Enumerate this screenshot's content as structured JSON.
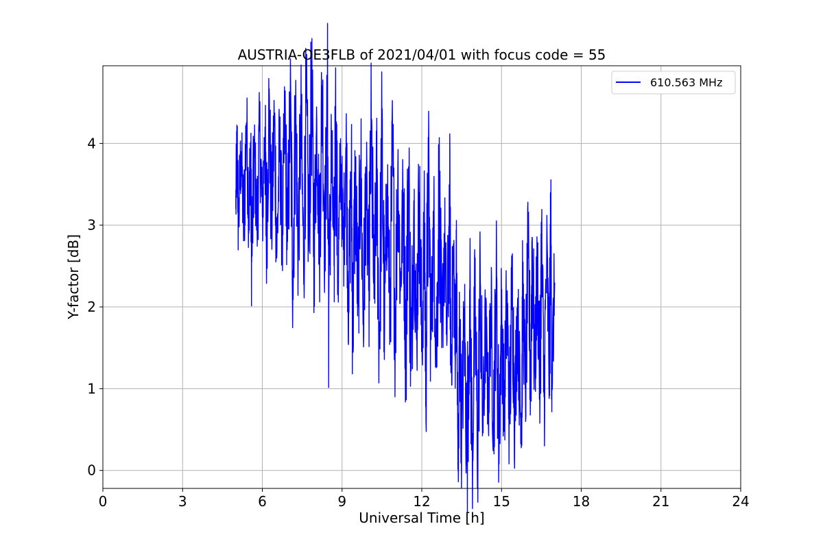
{
  "chart_data": {
    "type": "line",
    "title": "AUSTRIA-OE3FLB of 2021/04/01 with focus code = 55",
    "xlabel": "Universal Time [h]",
    "ylabel": "Y-factor [dB]",
    "xlim": [
      0,
      24
    ],
    "ylim": [
      -0.22,
      4.95
    ],
    "xticks": [
      0,
      3,
      6,
      9,
      12,
      15,
      18,
      21,
      24
    ],
    "yticks": [
      0,
      1,
      2,
      3,
      4
    ],
    "xtick_labels": [
      "0",
      "3",
      "6",
      "9",
      "12",
      "15",
      "18",
      "21",
      "24"
    ],
    "ytick_labels": [
      "0",
      "1",
      "2",
      "3",
      "4"
    ],
    "grid": true,
    "legend_position": "top-right",
    "series": [
      {
        "name": "610.563 MHz",
        "color": "#0000ff",
        "x_start": 5.0,
        "x_end": 17.0,
        "points": [
          [
            5.0,
            3.2
          ],
          [
            5.05,
            4.02
          ],
          [
            5.1,
            3.0
          ],
          [
            5.2,
            3.9
          ],
          [
            5.3,
            2.95
          ],
          [
            5.4,
            4.25
          ],
          [
            5.5,
            3.1
          ],
          [
            5.55,
            4.0
          ],
          [
            5.6,
            2.55
          ],
          [
            5.7,
            3.9
          ],
          [
            5.8,
            3.0
          ],
          [
            5.9,
            4.15
          ],
          [
            6.0,
            3.1
          ],
          [
            6.1,
            4.2
          ],
          [
            6.15,
            2.8
          ],
          [
            6.25,
            4.45
          ],
          [
            6.35,
            3.0
          ],
          [
            6.45,
            4.3
          ],
          [
            6.55,
            2.7
          ],
          [
            6.65,
            4.0
          ],
          [
            6.75,
            2.85
          ],
          [
            6.85,
            4.3
          ],
          [
            6.95,
            2.8
          ],
          [
            7.05,
            4.45
          ],
          [
            7.15,
            2.45
          ],
          [
            7.25,
            4.4
          ],
          [
            7.35,
            2.7
          ],
          [
            7.45,
            4.3
          ],
          [
            7.55,
            2.55
          ],
          [
            7.65,
            4.5
          ],
          [
            7.75,
            2.8
          ],
          [
            7.85,
            4.72
          ],
          [
            7.95,
            2.7
          ],
          [
            8.05,
            4.3
          ],
          [
            8.15,
            2.8
          ],
          [
            8.25,
            4.7
          ],
          [
            8.35,
            2.9
          ],
          [
            8.45,
            4.5
          ],
          [
            8.5,
            2.0
          ],
          [
            8.6,
            3.9
          ],
          [
            8.7,
            2.5
          ],
          [
            8.75,
            4.4
          ],
          [
            8.85,
            2.4
          ],
          [
            8.95,
            3.8
          ],
          [
            9.05,
            2.7
          ],
          [
            9.15,
            3.95
          ],
          [
            9.25,
            2.1
          ],
          [
            9.35,
            3.7
          ],
          [
            9.4,
            1.68
          ],
          [
            9.5,
            3.6
          ],
          [
            9.6,
            2.0
          ],
          [
            9.7,
            3.8
          ],
          [
            9.8,
            1.8
          ],
          [
            9.9,
            3.6
          ],
          [
            10.0,
            2.2
          ],
          [
            10.1,
            4.18
          ],
          [
            10.2,
            2.1
          ],
          [
            10.3,
            3.6
          ],
          [
            10.4,
            1.6
          ],
          [
            10.5,
            4.0
          ],
          [
            10.6,
            1.78
          ],
          [
            10.7,
            3.5
          ],
          [
            10.8,
            1.9
          ],
          [
            10.9,
            3.9
          ],
          [
            11.0,
            1.75
          ],
          [
            11.1,
            3.7
          ],
          [
            11.2,
            2.2
          ],
          [
            11.3,
            3.4
          ],
          [
            11.4,
            1.5
          ],
          [
            11.5,
            3.7
          ],
          [
            11.6,
            1.22
          ],
          [
            11.7,
            3.3
          ],
          [
            11.8,
            1.6
          ],
          [
            11.9,
            3.4
          ],
          [
            12.0,
            1.5
          ],
          [
            12.1,
            3.0
          ],
          [
            12.15,
            1.2
          ],
          [
            12.25,
            3.6
          ],
          [
            12.35,
            1.6
          ],
          [
            12.45,
            3.0
          ],
          [
            12.55,
            1.4
          ],
          [
            12.65,
            3.5
          ],
          [
            12.75,
            1.5
          ],
          [
            12.85,
            2.9
          ],
          [
            12.95,
            1.6
          ],
          [
            13.05,
            3.3
          ],
          [
            13.1,
            1.3
          ],
          [
            13.2,
            2.7
          ],
          [
            13.25,
            1.4
          ],
          [
            13.3,
            2.5
          ],
          [
            13.35,
            0.5
          ],
          [
            13.38,
            0.0
          ],
          [
            13.42,
            1.8
          ],
          [
            13.5,
            0.4
          ],
          [
            13.6,
            1.9
          ],
          [
            13.7,
            0.15
          ],
          [
            13.8,
            2.2
          ],
          [
            13.9,
            0.2
          ],
          [
            14.0,
            2.0
          ],
          [
            14.1,
            0.25
          ],
          [
            14.2,
            2.3
          ],
          [
            14.3,
            0.5
          ],
          [
            14.4,
            1.8
          ],
          [
            14.5,
            0.8
          ],
          [
            14.6,
            2.0
          ],
          [
            14.7,
            0.6
          ],
          [
            14.8,
            2.3
          ],
          [
            14.9,
            0.35
          ],
          [
            15.0,
            1.9
          ],
          [
            15.1,
            0.7
          ],
          [
            15.2,
            2.1
          ],
          [
            15.3,
            0.6
          ],
          [
            15.4,
            2.3
          ],
          [
            15.5,
            0.7
          ],
          [
            15.6,
            2.0
          ],
          [
            15.7,
            0.8
          ],
          [
            15.75,
            0.45
          ],
          [
            15.8,
            2.2
          ],
          [
            15.9,
            1.0
          ],
          [
            16.0,
            2.6
          ],
          [
            16.1,
            1.0
          ],
          [
            16.15,
            2.85
          ],
          [
            16.25,
            1.2
          ],
          [
            16.35,
            2.5
          ],
          [
            16.45,
            1.0
          ],
          [
            16.5,
            2.8
          ],
          [
            16.6,
            0.9
          ],
          [
            16.7,
            2.6
          ],
          [
            16.8,
            1.2
          ],
          [
            16.85,
            3.0
          ],
          [
            16.9,
            1.2
          ],
          [
            17.0,
            2.3
          ]
        ]
      }
    ]
  }
}
